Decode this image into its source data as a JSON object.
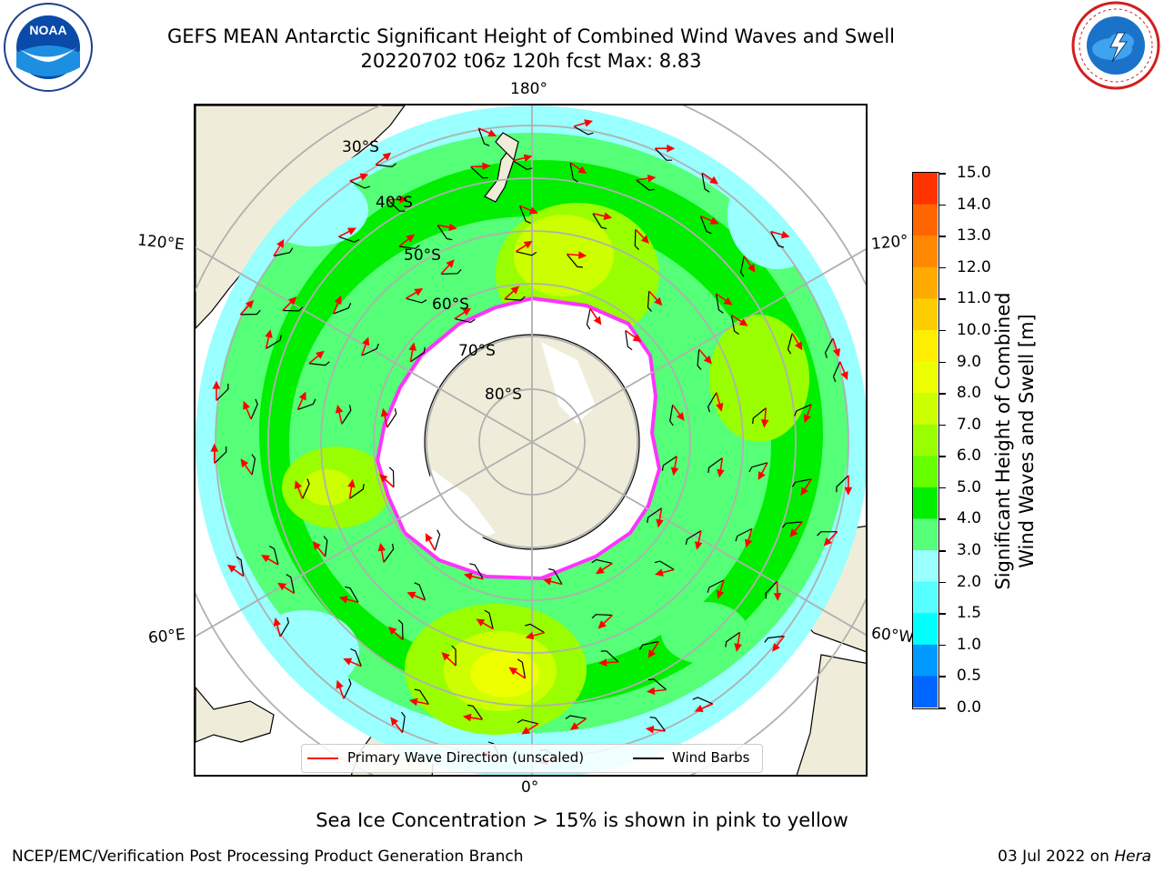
{
  "title": {
    "line1": "GEFS MEAN Antarctic Significant Height of Combined Wind Waves and Swell",
    "line2": "20220702 t06z 120h fcst   Max: 8.83"
  },
  "logos": {
    "left": "NOAA",
    "left_ring_text": "NATIONAL OCEANIC AND ATMOSPHERIC ADMINISTRATION · U.S. DEPARTMENT OF COMMERCE",
    "right_ring_text": "NATIONAL WEATHER SERVICE"
  },
  "map": {
    "lon_labels": {
      "top": "180°",
      "bottom": "0°",
      "left_upper": "120°E",
      "left_lower": "60°E",
      "right_upper": "120°",
      "right_lower": "60°W"
    },
    "lat_labels": [
      "30°S",
      "40°S",
      "50°S",
      "60°S",
      "70°S",
      "80°S"
    ]
  },
  "colorbar": {
    "label_line1": "Significant Height of Combined",
    "label_line2": "Wind Waves and Swell [m]",
    "ticks": [
      "15.0",
      "14.0",
      "13.0",
      "12.0",
      "11.0",
      "10.0",
      "9.0",
      "8.0",
      "7.0",
      "6.0",
      "5.0",
      "4.0",
      "3.0",
      "2.0",
      "1.5",
      "1.0",
      "0.5",
      "0.0"
    ],
    "colors": [
      "#ff0000",
      "#ff3300",
      "#ff6600",
      "#ff8800",
      "#ffaa00",
      "#ffcc00",
      "#ffee00",
      "#eeff00",
      "#ccff00",
      "#99ff00",
      "#66ff00",
      "#00ee00",
      "#55ff77",
      "#99ffff",
      "#55ffff",
      "#00ffff",
      "#0099ff",
      "#0066ff",
      "#0000ff"
    ]
  },
  "legend": {
    "wave_label": "Primary Wave Direction (unscaled)",
    "barb_label": "Wind Barbs",
    "wave_color": "#ff0000",
    "barb_color": "#000000"
  },
  "footer": {
    "note": "Sea Ice Concentration > 15% is shown in pink to yellow",
    "left": "NCEP/EMC/Verification Post Processing Product Generation Branch",
    "right_date": "03 Jul 2022 on ",
    "right_host": "Hera"
  }
}
